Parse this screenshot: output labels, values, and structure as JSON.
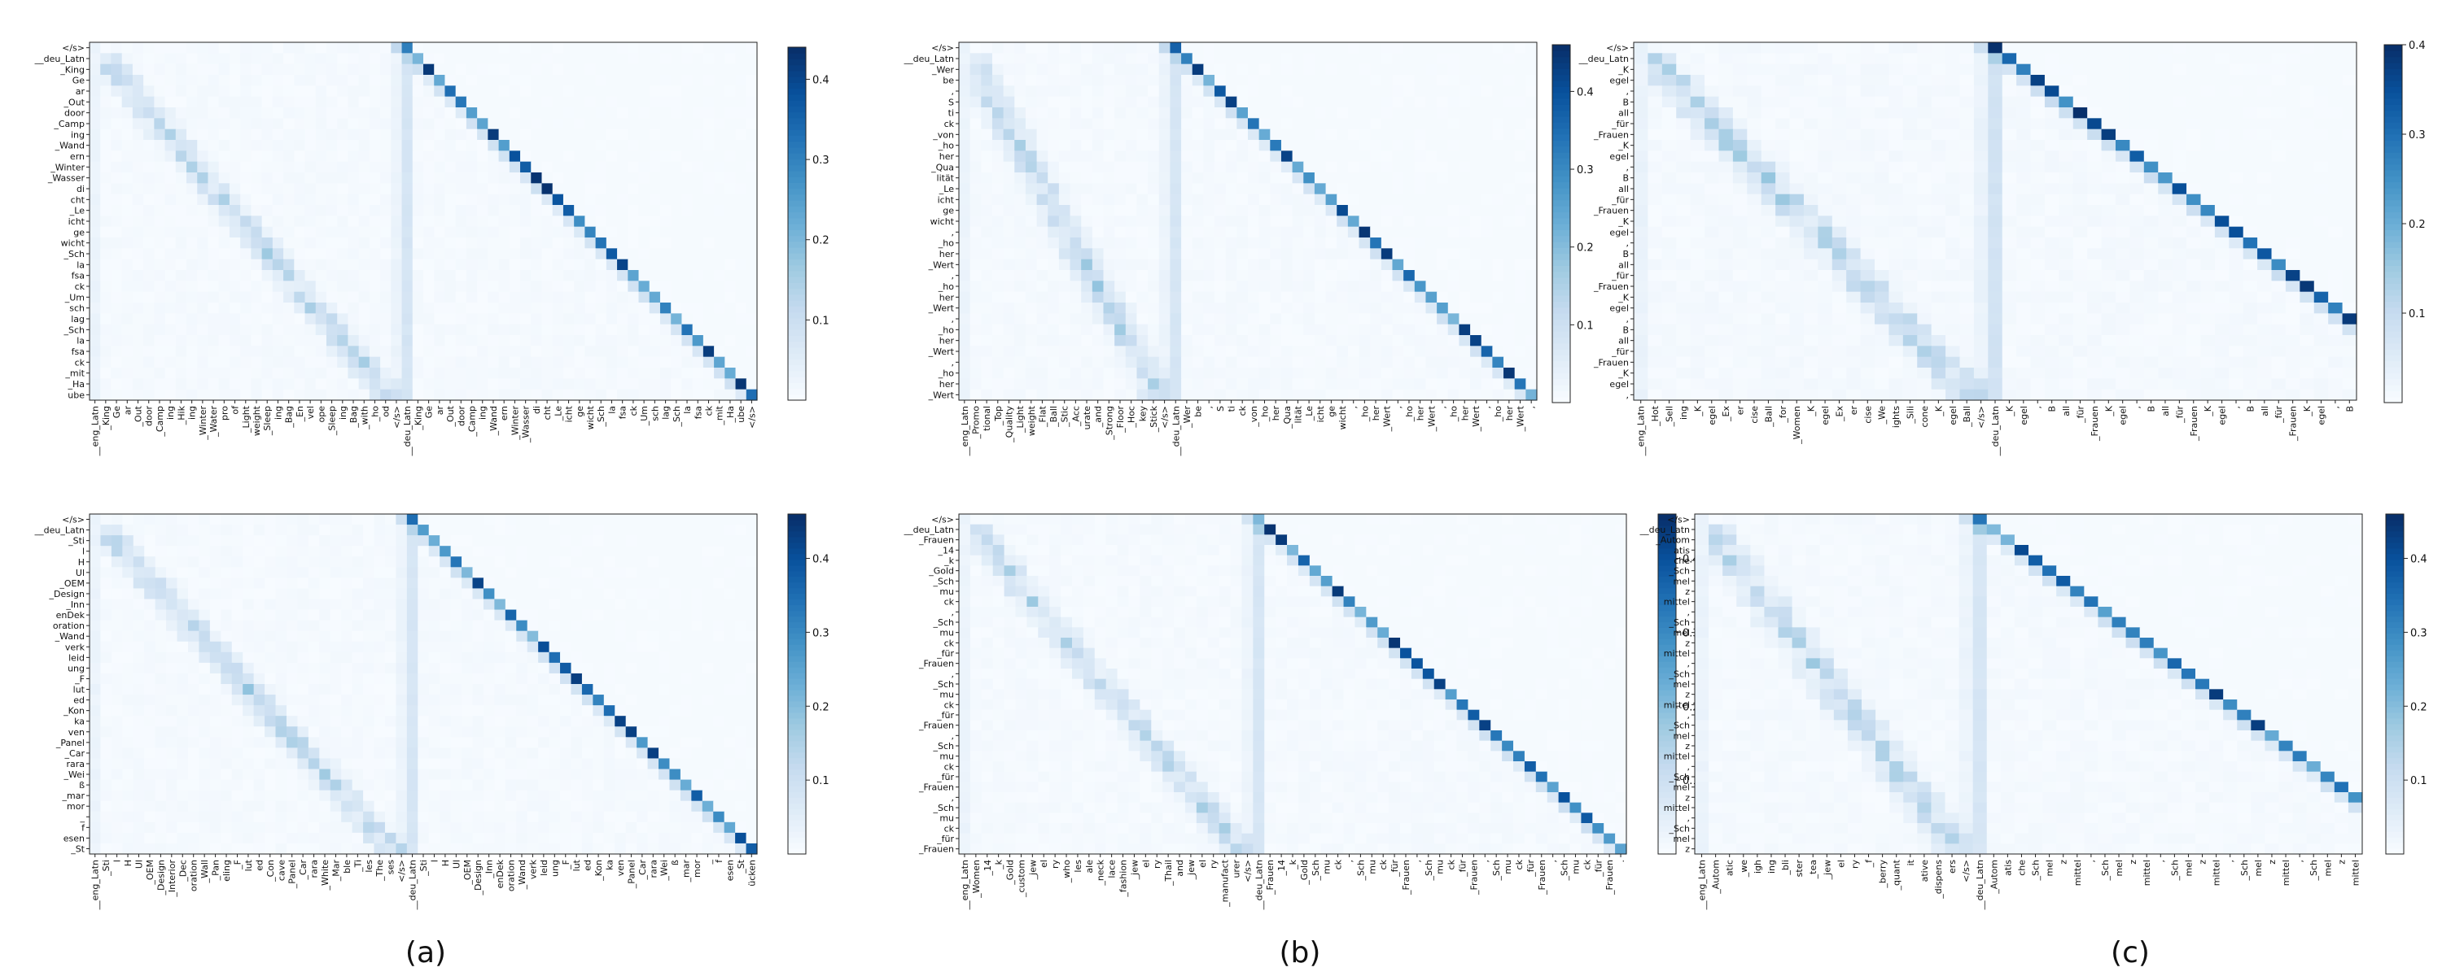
{
  "captions": [
    "(a)",
    "(b)",
    "(c)"
  ],
  "chart_data": [
    {
      "type": "heatmap",
      "colormap": "Blues",
      "vmin": 0,
      "vmax": 0.44,
      "colorbar_ticks": [
        0.1,
        0.2,
        0.3,
        0.4
      ],
      "split_token": "__deu_Latn",
      "y_labels": [
        "</s>",
        "__deu_Latn",
        "_King",
        "Ge",
        "ar",
        "_Out",
        "door",
        "_Camp",
        "ing",
        "_Wand",
        "ern",
        "_Winter",
        "_Wasser",
        "di",
        "cht",
        "_Le",
        "icht",
        "ge",
        "wicht",
        "_Sch",
        "la",
        "fsa",
        "ck",
        "_Um",
        "sch",
        "lag",
        "_Sch",
        "la",
        "fsa",
        "ck",
        "_mit",
        "_Ha",
        "ube"
      ],
      "x_labels": [
        "__eng_Latn",
        "_King",
        "Ge",
        "ar",
        "_Out",
        "door",
        "_Camp",
        "ing",
        "_Hik",
        "ing",
        "_Winter",
        "_Water",
        "pro",
        "of",
        "_Light",
        "weight",
        "_Sleep",
        "ing",
        "_Bag",
        "_En",
        "vel",
        "ope",
        "_Sleep",
        "ing",
        "_Bag",
        "_with",
        "_ho",
        "od",
        "</s>",
        "__deu_Latn",
        "_King",
        "Ge",
        "ar",
        "_Out",
        "door",
        "_Camp",
        "ing",
        "_Wand",
        "ern",
        "_Winter",
        "_Wasser",
        "di",
        "cht",
        "_Le",
        "icht",
        "ge",
        "wicht",
        "_Sch",
        "la",
        "fsa",
        "ck",
        "_Um",
        "sch",
        "lag",
        "_Sch",
        "la",
        "fsa",
        "ck",
        "_mit",
        "_Ha",
        "ube",
        "</s>"
      ]
    },
    {
      "type": "heatmap",
      "colormap": "Blues",
      "vmin": 0,
      "vmax": 0.46,
      "colorbar_ticks": [
        0.1,
        0.2,
        0.3,
        0.4
      ],
      "split_token": "__deu_Latn",
      "y_labels": [
        "</s>",
        "__deu_Latn",
        "_Wer",
        "be",
        ",",
        "S",
        "ti",
        "ck",
        "_von",
        "_ho",
        "her",
        "_Qua",
        "lität",
        "_Le",
        "icht",
        "ge",
        "wicht",
        ",",
        "_ho",
        "her",
        "_Wert",
        ",",
        "_ho",
        "her",
        "_Wert",
        ",",
        "_ho",
        "her",
        "_Wert",
        ",",
        "_ho",
        "her",
        "_Wert"
      ],
      "x_labels": [
        "__eng_Latn",
        "_Promo",
        "tional",
        "_Top",
        "_Quality",
        "_Light",
        "weight",
        "_Flat",
        "_Ball",
        "_Stic",
        "_Acc",
        "urate",
        "_and",
        "_Strong",
        "_Floor",
        "_Hoc",
        "key",
        "_Stick",
        "</s>",
        "__deu_Latn",
        "_Wer",
        "be",
        ",",
        "S",
        "ti",
        "ck",
        "_von",
        "_ho",
        "her",
        "_Qua",
        "lität",
        "_Le",
        "icht",
        "ge",
        "wicht",
        ",",
        "_ho",
        "her",
        "_Wert",
        ",",
        "_ho",
        "her",
        "_Wert",
        ",",
        "_ho",
        "her",
        "_Wert",
        ",",
        "_ho",
        "her",
        "_Wert",
        ","
      ]
    },
    {
      "type": "heatmap",
      "colormap": "Blues",
      "vmin": 0,
      "vmax": 0.4,
      "colorbar_ticks": [
        0.1,
        0.2,
        0.3,
        0.4
      ],
      "split_token": "__deu_Latn",
      "y_labels": [
        "</s>",
        "__deu_Latn",
        "_K",
        "egel",
        ",",
        "B",
        "all",
        "_für",
        "_Frauen",
        "_K",
        "egel",
        ",",
        "B",
        "all",
        "_für",
        "_Frauen",
        "_K",
        "egel",
        ",",
        "B",
        "all",
        "_für",
        "_Frauen",
        "_K",
        "egel",
        ",",
        "B",
        "all",
        "_für",
        "_Frauen",
        "_K",
        "egel",
        ","
      ],
      "x_labels": [
        "__eng_Latn",
        "_Hot",
        "_Sell",
        "ing",
        "_K",
        "egel",
        "_Ex",
        "er",
        "cise",
        "_Ball",
        "_for",
        "_Women",
        "_K",
        "egel",
        "_Ex",
        "er",
        "cise",
        "_We",
        "ights",
        "_Sili",
        "cone",
        "_K",
        "egel",
        "_Ball",
        "</s>",
        "__deu_Latn",
        "_K",
        "egel",
        ",",
        "B",
        "all",
        "_für",
        "_Frauen",
        "_K",
        "egel",
        ",",
        "B",
        "all",
        "_für",
        "_Frauen",
        "_K",
        "egel",
        ",",
        "B",
        "all",
        "_für",
        "_Frauen",
        "_K",
        "egel",
        ",",
        "B"
      ]
    },
    {
      "type": "heatmap",
      "colormap": "Blues",
      "vmin": 0,
      "vmax": 0.46,
      "colorbar_ticks": [
        0.1,
        0.2,
        0.3,
        0.4
      ],
      "split_token": "__deu_Latn",
      "y_labels": [
        "</s>",
        "__deu_Latn",
        "_Sti",
        "l",
        "H",
        "Ul",
        "_OEM",
        "_Design",
        "_Inn",
        "enDek",
        "oration",
        "_Wand",
        "verk",
        "leid",
        "ung",
        "_F",
        "lut",
        "ed",
        "_Kon",
        "ka",
        "ven",
        "_Panel",
        "_Car",
        "rara",
        "_Wei",
        "ß",
        "_mar",
        "mor",
        "_",
        "f",
        "esen",
        "_St"
      ],
      "x_labels": [
        "__eng_Latn",
        "_Sti",
        "l",
        "H",
        "Ul",
        "_OEM",
        "_Design",
        "_Interior",
        "_Dec",
        "oration",
        "_Wall",
        "_Pan",
        "eling",
        "_F",
        "lut",
        "ed",
        "_Con",
        "cave",
        "_Panel",
        "_Car",
        "rara",
        "_White",
        "_Mar",
        "ble",
        "_Ti",
        "les",
        "_The",
        "ses",
        "</s>",
        "__deu_Latn",
        "_Sti",
        "l",
        "H",
        "Ul",
        "_OEM",
        "_Design",
        "_Inn",
        "enDek",
        "oration",
        "_Wand",
        "verk",
        "leid",
        "ung",
        "_F",
        "lut",
        "ed",
        "_Kon",
        "ka",
        "ven",
        "_Panel",
        "_Car",
        "rara",
        "_Wei",
        "ß",
        "_mar",
        "mor",
        "_",
        "f",
        "esen",
        "_St",
        "ücken"
      ]
    },
    {
      "type": "heatmap",
      "colormap": "Blues",
      "vmin": 0,
      "vmax": 0.46,
      "colorbar_ticks": [
        0.1,
        0.2,
        0.3,
        0.4
      ],
      "split_token": "__deu_Latn",
      "y_labels": [
        "</s>",
        "__deu_Latn",
        "_Frauen",
        "_14",
        "_k",
        "_Gold",
        "_Sch",
        "mu",
        "ck",
        ",",
        "_Sch",
        "mu",
        "ck",
        "_für",
        "_Frauen",
        ",",
        "_Sch",
        "mu",
        "ck",
        "_für",
        "_Frauen",
        ",",
        "_Sch",
        "mu",
        "ck",
        "_für",
        "_Frauen",
        ",",
        "_Sch",
        "mu",
        "ck",
        "_für",
        "_Frauen"
      ],
      "x_labels": [
        "__eng_Latn",
        "_Women",
        "_14",
        "_k",
        "_Gold",
        "_custom",
        "_jew",
        "el",
        "ry",
        "_who",
        "les",
        "ale",
        "_neck",
        "lace",
        "_fashion",
        "_jew",
        "el",
        "ry",
        "_Thail",
        "and",
        "_jew",
        "el",
        "ry",
        "_manufact",
        "urer",
        "</s>",
        "__deu_Latn",
        "_Frauen",
        "_14",
        "_k",
        "_Gold",
        "_Sch",
        "mu",
        "ck",
        ",",
        "_Sch",
        "mu",
        "ck",
        "_für",
        "_Frauen",
        ",",
        "_Sch",
        "mu",
        "ck",
        "_für",
        "_Frauen",
        ",",
        "_Sch",
        "mu",
        "ck",
        "_für",
        "_Frauen",
        ",",
        "_Sch",
        "mu",
        "ck",
        "_für",
        "_Frauen",
        "."
      ]
    },
    {
      "type": "heatmap",
      "colormap": "Blues",
      "vmin": 0,
      "vmax": 0.46,
      "colorbar_ticks": [
        0.1,
        0.2,
        0.3,
        0.4
      ],
      "split_token": "__deu_Latn",
      "y_labels": [
        "</s>",
        "__deu_Latn",
        "_Autom",
        "atis",
        "che",
        "_Sch",
        "mel",
        "z",
        "mittel",
        ",",
        "_Sch",
        "mel",
        "z",
        "mittel",
        ",",
        "_Sch",
        "mel",
        "z",
        "mittel",
        ",",
        "_Sch",
        "mel",
        "z",
        "mittel",
        ",",
        "_Sch",
        "mel",
        "z",
        "mittel",
        ",",
        "_Sch",
        "mel",
        "z"
      ],
      "x_labels": [
        "__eng_Latn",
        "_Autom",
        "atic",
        "_we",
        "igh",
        "ing",
        "_bli",
        "ster",
        "_tea",
        "_jew",
        "el",
        "ry",
        "_f",
        "_berry",
        "_quant",
        "it",
        "ative",
        "_dispens",
        "ers",
        "</s>",
        "__deu_Latn",
        "_Autom",
        "atis",
        "che",
        "_Sch",
        "mel",
        "z",
        "mittel",
        ",",
        "_Sch",
        "mel",
        "z",
        "mittel",
        ",",
        "_Sch",
        "mel",
        "z",
        "mittel",
        ",",
        "_Sch",
        "mel",
        "z",
        "mittel",
        ",",
        "_Sch",
        "mel",
        "z",
        "mittel"
      ]
    }
  ]
}
